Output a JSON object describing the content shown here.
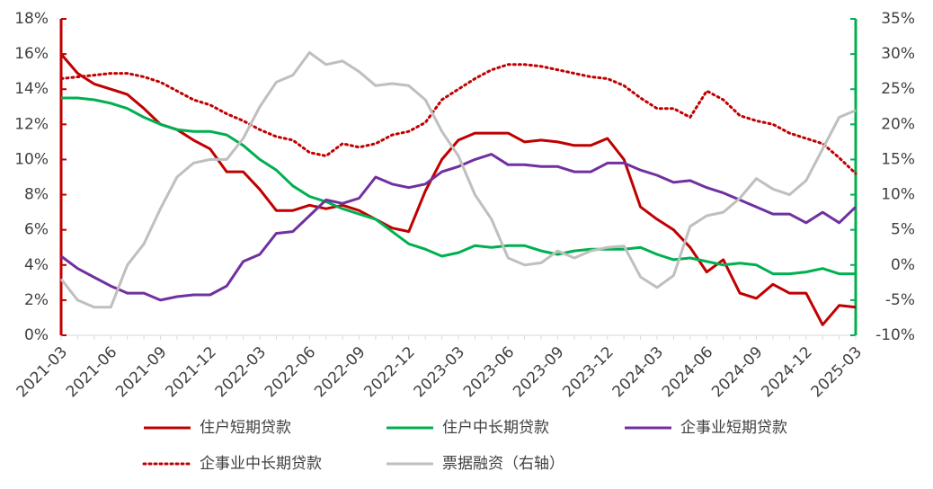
{
  "chart_data": {
    "type": "line",
    "categories": [
      "2021-03",
      null,
      null,
      "2021-06",
      null,
      null,
      "2021-09",
      null,
      null,
      "2021-12",
      null,
      null,
      "2022-03",
      null,
      null,
      "2022-06",
      null,
      null,
      "2022-09",
      null,
      null,
      "2022-12",
      null,
      null,
      "2023-03",
      null,
      null,
      "2023-06",
      null,
      null,
      "2023-09",
      null,
      null,
      "2023-12",
      null,
      null,
      "2024-03",
      null,
      null,
      "2024-06",
      null,
      null,
      "2024-09",
      null,
      null,
      "2024-12",
      null,
      null,
      "2025-03"
    ],
    "series": [
      {
        "name": "住户短期贷款",
        "color": "#c00000",
        "dash": "solid",
        "values": [
          16.0,
          14.9,
          14.3,
          14.0,
          13.7,
          12.9,
          12.0,
          11.7,
          11.1,
          10.6,
          9.3,
          9.3,
          8.3,
          7.1,
          7.1,
          7.4,
          7.2,
          7.4,
          7.1,
          6.6,
          6.1,
          5.9,
          8.2,
          10.0,
          11.1,
          11.5,
          11.5,
          11.5,
          11.0,
          11.1,
          11.0,
          10.8,
          10.8,
          11.2,
          10.0,
          7.3,
          6.6,
          6.0,
          5.0,
          3.6,
          4.3,
          2.4,
          2.1,
          2.9,
          2.4,
          2.4,
          0.6,
          1.7,
          1.6
        ]
      },
      {
        "name": "住户中长期贷款",
        "color": "#00b050",
        "dash": "solid",
        "values": [
          13.5,
          13.5,
          13.4,
          13.2,
          12.9,
          12.4,
          12.0,
          11.7,
          11.6,
          11.6,
          11.4,
          10.8,
          10.0,
          9.4,
          8.5,
          7.9,
          7.6,
          7.2,
          6.9,
          6.6,
          5.9,
          5.2,
          4.9,
          4.5,
          4.7,
          5.1,
          5.0,
          5.1,
          5.1,
          4.8,
          4.6,
          4.8,
          4.9,
          4.9,
          4.9,
          5.0,
          4.6,
          4.3,
          4.4,
          4.2,
          4.0,
          4.1,
          4.0,
          3.5,
          3.5,
          3.6,
          3.8,
          3.5,
          3.5
        ]
      },
      {
        "name": "企事业短期贷款",
        "color": "#7030a0",
        "dash": "solid",
        "values": [
          4.5,
          3.8,
          3.3,
          2.8,
          2.4,
          2.4,
          2.0,
          2.2,
          2.3,
          2.3,
          2.8,
          4.2,
          4.6,
          5.8,
          5.9,
          6.8,
          7.7,
          7.5,
          7.8,
          9.0,
          8.6,
          8.4,
          8.6,
          9.3,
          9.6,
          10.0,
          10.3,
          9.7,
          9.7,
          9.6,
          9.6,
          9.3,
          9.3,
          9.8,
          9.8,
          9.4,
          9.1,
          8.7,
          8.8,
          8.4,
          8.1,
          7.7,
          7.3,
          6.9,
          6.9,
          6.4,
          7.0,
          6.4,
          7.3
        ]
      },
      {
        "name": "企事业中长期贷款",
        "color": "#c00000",
        "dash": "dotted",
        "values": [
          14.6,
          14.7,
          14.8,
          14.9,
          14.9,
          14.7,
          14.4,
          13.9,
          13.4,
          13.1,
          12.6,
          12.2,
          11.7,
          11.3,
          11.1,
          10.4,
          10.2,
          10.9,
          10.7,
          10.9,
          11.4,
          11.6,
          12.1,
          13.4,
          14.0,
          14.6,
          15.1,
          15.4,
          15.4,
          15.3,
          15.1,
          14.9,
          14.7,
          14.6,
          14.2,
          13.5,
          12.9,
          12.9,
          12.4,
          13.9,
          13.4,
          12.5,
          12.2,
          12.0,
          11.5,
          11.2,
          10.9,
          10.1,
          9.2
        ]
      },
      {
        "name": "票据融资（右轴）",
        "color": "#bfbfbf",
        "dash": "solid",
        "axis": "y2",
        "values": [
          -2,
          -5,
          -6,
          -6,
          0,
          3,
          8,
          12.5,
          14.5,
          15,
          15,
          18,
          22.5,
          26,
          27,
          30.2,
          28.5,
          29,
          27.5,
          25.5,
          25.8,
          25.5,
          23.5,
          19,
          15.5,
          10,
          6.5,
          1,
          0,
          0.3,
          2,
          1,
          2,
          2.5,
          2.7,
          -1.7,
          -3.2,
          -1.5,
          5.5,
          7,
          7.5,
          9.5,
          12.3,
          10.8,
          10,
          12,
          16.5,
          21,
          22
        ]
      }
    ],
    "ylim": [
      0,
      18
    ],
    "yticks": [
      {
        "value": 0,
        "label": "0%"
      },
      {
        "value": 2,
        "label": "2%"
      },
      {
        "value": 4,
        "label": "4%"
      },
      {
        "value": 6,
        "label": "6%"
      },
      {
        "value": 8,
        "label": "8%"
      },
      {
        "value": 10,
        "label": "10%"
      },
      {
        "value": 12,
        "label": "12%"
      },
      {
        "value": 14,
        "label": "14%"
      },
      {
        "value": 16,
        "label": "16%"
      },
      {
        "value": 18,
        "label": "18%"
      }
    ],
    "y2lim": [
      -10,
      35
    ],
    "y2ticks": [
      {
        "value": -10,
        "label": "-10%"
      },
      {
        "value": -5,
        "label": "-5%"
      },
      {
        "value": 0,
        "label": "0%"
      },
      {
        "value": 5,
        "label": "5%"
      },
      {
        "value": 10,
        "label": "10%"
      },
      {
        "value": 15,
        "label": "15%"
      },
      {
        "value": 20,
        "label": "20%"
      },
      {
        "value": 25,
        "label": "25%"
      },
      {
        "value": 30,
        "label": "30%"
      },
      {
        "value": 35,
        "label": "35%"
      }
    ],
    "yaxis_color": "#c00000",
    "y2axis_color": "#00b050"
  }
}
